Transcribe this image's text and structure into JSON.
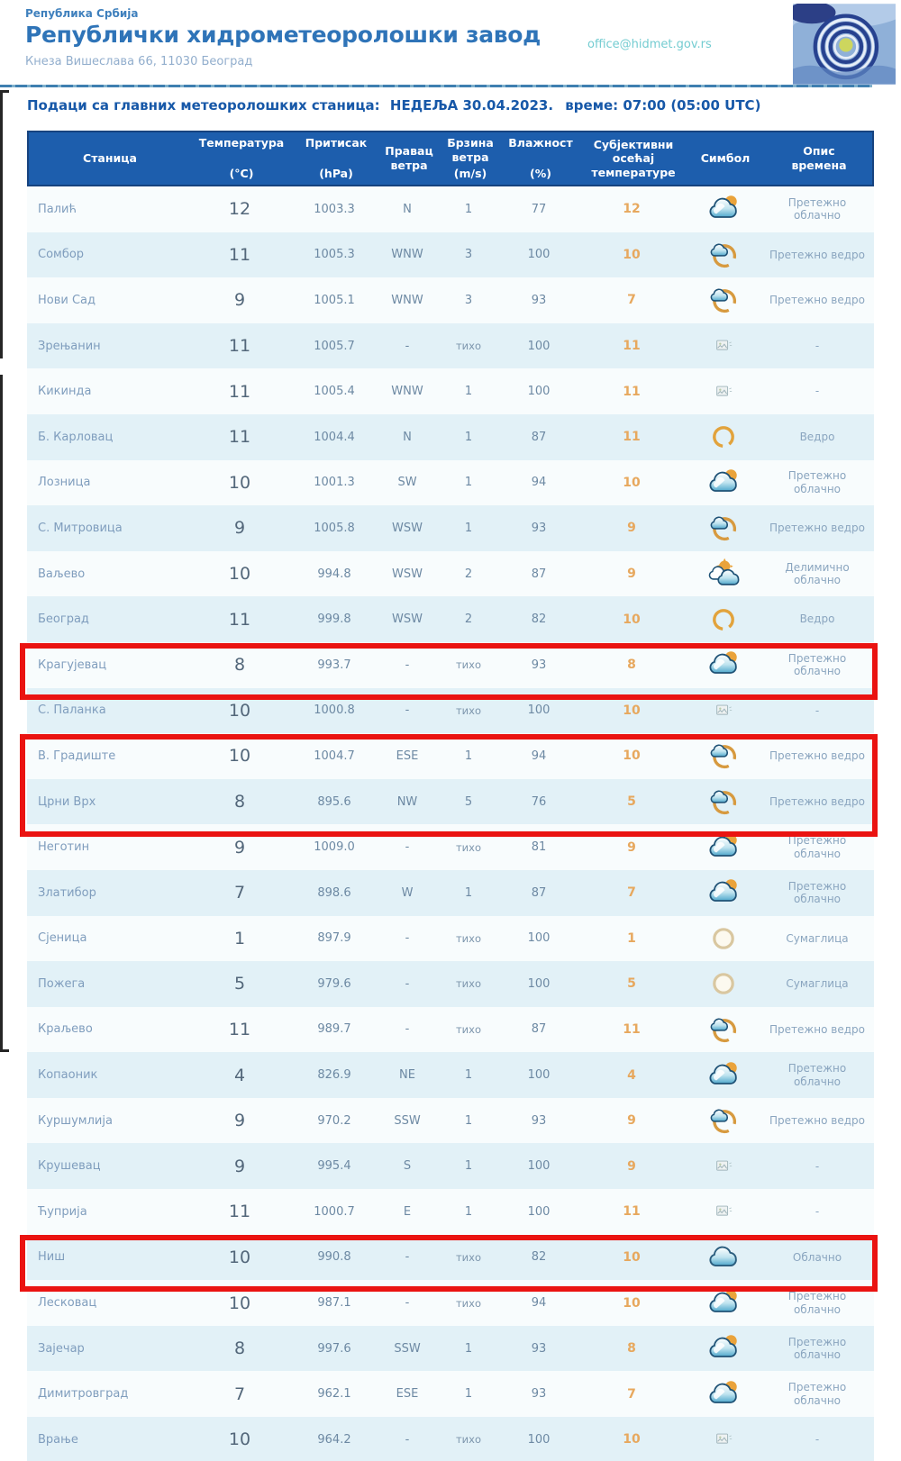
{
  "header": {
    "country": "Република Србија",
    "org_name": "Републички хидрометеоролошки завод",
    "address": "Кнеза Вишеслава 66, 11030 Београд",
    "email": "office@hidmet.gov.rs"
  },
  "subtitle": {
    "label": "Подаци са главних метеоролошких станица:",
    "date": "НЕДЕЉА 30.04.2023.",
    "time": "време: 07:00 (05:00 UTC)"
  },
  "colors": {
    "header_bg": "#1d5ead",
    "title_blue": "#2f74b8",
    "feels_like_orange": "#e7a85e",
    "highlight_red": "#ea1311"
  },
  "table": {
    "columns": [
      {
        "key": "station",
        "lines": [
          "Станица"
        ],
        "unit": ""
      },
      {
        "key": "temperature",
        "lines": [
          "Температура"
        ],
        "unit": "(°C)"
      },
      {
        "key": "pressure",
        "lines": [
          "Притисак"
        ],
        "unit": "(hPa)"
      },
      {
        "key": "wind-direction",
        "lines": [
          "Правац",
          "ветра"
        ],
        "unit": ""
      },
      {
        "key": "wind-speed",
        "lines": [
          "Брзина",
          "ветра"
        ],
        "unit": "(m/s)"
      },
      {
        "key": "humidity",
        "lines": [
          "Влажност"
        ],
        "unit": "(%)"
      },
      {
        "key": "feels-like",
        "lines": [
          "Субјективни",
          "осећај",
          "температуре"
        ],
        "unit": ""
      },
      {
        "key": "symbol",
        "lines": [
          "Симбол"
        ],
        "unit": ""
      },
      {
        "key": "description",
        "lines": [
          "Опис",
          "времена"
        ],
        "unit": ""
      }
    ],
    "rows": [
      {
        "station": "Палић",
        "temp": "12",
        "pressure": "1003.3",
        "wind_dir": "N",
        "wind_speed": "1",
        "humidity": "77",
        "feels_like": "12",
        "icon": "mostly-cloudy-icon",
        "description": "Претежно облачно"
      },
      {
        "station": "Сомбор",
        "temp": "11",
        "pressure": "1005.3",
        "wind_dir": "WNW",
        "wind_speed": "3",
        "humidity": "100",
        "feels_like": "10",
        "icon": "mostly-clear-icon",
        "description": "Претежно ведро"
      },
      {
        "station": "Нови Сад",
        "temp": "9",
        "pressure": "1005.1",
        "wind_dir": "WNW",
        "wind_speed": "3",
        "humidity": "93",
        "feels_like": "7",
        "icon": "mostly-clear-icon",
        "description": "Претежно ведро"
      },
      {
        "station": "Зрењанин",
        "temp": "11",
        "pressure": "1005.7",
        "wind_dir": "-",
        "wind_speed": "тихо",
        "humidity": "100",
        "feels_like": "11",
        "icon": "no-data-icon",
        "description": "-"
      },
      {
        "station": "Кикинда",
        "temp": "11",
        "pressure": "1005.4",
        "wind_dir": "WNW",
        "wind_speed": "1",
        "humidity": "100",
        "feels_like": "11",
        "icon": "no-data-icon",
        "description": "-"
      },
      {
        "station": "Б. Карловац",
        "temp": "11",
        "pressure": "1004.4",
        "wind_dir": "N",
        "wind_speed": "1",
        "humidity": "87",
        "feels_like": "11",
        "icon": "clear-icon",
        "description": "Ведро"
      },
      {
        "station": "Лозница",
        "temp": "10",
        "pressure": "1001.3",
        "wind_dir": "SW",
        "wind_speed": "1",
        "humidity": "94",
        "feels_like": "10",
        "icon": "mostly-cloudy-icon",
        "description": "Претежно облачно"
      },
      {
        "station": "С. Митровица",
        "temp": "9",
        "pressure": "1005.8",
        "wind_dir": "WSW",
        "wind_speed": "1",
        "humidity": "93",
        "feels_like": "9",
        "icon": "mostly-clear-icon",
        "description": "Претежно ведро"
      },
      {
        "station": "Ваљево",
        "temp": "10",
        "pressure": "994.8",
        "wind_dir": "WSW",
        "wind_speed": "2",
        "humidity": "87",
        "feels_like": "9",
        "icon": "partly-cloudy-icon",
        "description": "Делимично облачно"
      },
      {
        "station": "Београд",
        "temp": "11",
        "pressure": "999.8",
        "wind_dir": "WSW",
        "wind_speed": "2",
        "humidity": "82",
        "feels_like": "10",
        "icon": "clear-icon",
        "description": "Ведро"
      },
      {
        "station": "Крагујевац",
        "temp": "8",
        "pressure": "993.7",
        "wind_dir": "-",
        "wind_speed": "тихо",
        "humidity": "93",
        "feels_like": "8",
        "icon": "mostly-cloudy-icon",
        "description": "Претежно облачно"
      },
      {
        "station": "С. Паланка",
        "temp": "10",
        "pressure": "1000.8",
        "wind_dir": "-",
        "wind_speed": "тихо",
        "humidity": "100",
        "feels_like": "10",
        "icon": "no-data-icon",
        "description": "-"
      },
      {
        "station": "В. Градиште",
        "temp": "10",
        "pressure": "1004.7",
        "wind_dir": "ESE",
        "wind_speed": "1",
        "humidity": "94",
        "feels_like": "10",
        "icon": "mostly-clear-icon",
        "description": "Претежно ведро"
      },
      {
        "station": "Црни Врх",
        "temp": "8",
        "pressure": "895.6",
        "wind_dir": "NW",
        "wind_speed": "5",
        "humidity": "76",
        "feels_like": "5",
        "icon": "mostly-clear-icon",
        "description": "Претежно ведро"
      },
      {
        "station": "Неготин",
        "temp": "9",
        "pressure": "1009.0",
        "wind_dir": "-",
        "wind_speed": "тихо",
        "humidity": "81",
        "feels_like": "9",
        "icon": "mostly-cloudy-icon",
        "description": "Претежно облачно"
      },
      {
        "station": "Златибор",
        "temp": "7",
        "pressure": "898.6",
        "wind_dir": "W",
        "wind_speed": "1",
        "humidity": "87",
        "feels_like": "7",
        "icon": "mostly-cloudy-icon",
        "description": "Претежно облачно"
      },
      {
        "station": "Сјеница",
        "temp": "1",
        "pressure": "897.9",
        "wind_dir": "-",
        "wind_speed": "тихо",
        "humidity": "100",
        "feels_like": "1",
        "icon": "haze-icon",
        "description": "Сумаглица"
      },
      {
        "station": "Пожега",
        "temp": "5",
        "pressure": "979.6",
        "wind_dir": "-",
        "wind_speed": "тихо",
        "humidity": "100",
        "feels_like": "5",
        "icon": "haze-icon",
        "description": "Сумаглица"
      },
      {
        "station": "Краљево",
        "temp": "11",
        "pressure": "989.7",
        "wind_dir": "-",
        "wind_speed": "тихо",
        "humidity": "87",
        "feels_like": "11",
        "icon": "mostly-clear-icon",
        "description": "Претежно ведро"
      },
      {
        "station": "Копаоник",
        "temp": "4",
        "pressure": "826.9",
        "wind_dir": "NE",
        "wind_speed": "1",
        "humidity": "100",
        "feels_like": "4",
        "icon": "mostly-cloudy-icon",
        "description": "Претежно облачно"
      },
      {
        "station": "Куршумлија",
        "temp": "9",
        "pressure": "970.2",
        "wind_dir": "SSW",
        "wind_speed": "1",
        "humidity": "93",
        "feels_like": "9",
        "icon": "mostly-clear-icon",
        "description": "Претежно ведро"
      },
      {
        "station": "Крушевац",
        "temp": "9",
        "pressure": "995.4",
        "wind_dir": "S",
        "wind_speed": "1",
        "humidity": "100",
        "feels_like": "9",
        "icon": "no-data-icon",
        "description": "-"
      },
      {
        "station": "Ћуприја",
        "temp": "11",
        "pressure": "1000.7",
        "wind_dir": "E",
        "wind_speed": "1",
        "humidity": "100",
        "feels_like": "11",
        "icon": "no-data-icon",
        "description": "-"
      },
      {
        "station": "Ниш",
        "temp": "10",
        "pressure": "990.8",
        "wind_dir": "-",
        "wind_speed": "тихо",
        "humidity": "82",
        "feels_like": "10",
        "icon": "cloudy-icon",
        "description": "Облачно"
      },
      {
        "station": "Лесковац",
        "temp": "10",
        "pressure": "987.1",
        "wind_dir": "-",
        "wind_speed": "тихо",
        "humidity": "94",
        "feels_like": "10",
        "icon": "mostly-cloudy-icon",
        "description": "Претежно облачно"
      },
      {
        "station": "Зајечар",
        "temp": "8",
        "pressure": "997.6",
        "wind_dir": "SSW",
        "wind_speed": "1",
        "humidity": "93",
        "feels_like": "8",
        "icon": "mostly-cloudy-icon",
        "description": "Претежно облачно"
      },
      {
        "station": "Димитровград",
        "temp": "7",
        "pressure": "962.1",
        "wind_dir": "ESE",
        "wind_speed": "1",
        "humidity": "93",
        "feels_like": "7",
        "icon": "mostly-cloudy-icon",
        "description": "Претежно облачно"
      },
      {
        "station": "Врање",
        "temp": "10",
        "pressure": "964.2",
        "wind_dir": "-",
        "wind_speed": "тихо",
        "humidity": "100",
        "feels_like": "10",
        "icon": "no-data-icon",
        "description": "-"
      }
    ]
  },
  "highlights": {
    "color": "#ea1311",
    "groups": [
      [
        "Црни Врх"
      ],
      [
        "Златибор",
        "Сјеница"
      ],
      [
        "Димитровград"
      ]
    ]
  }
}
